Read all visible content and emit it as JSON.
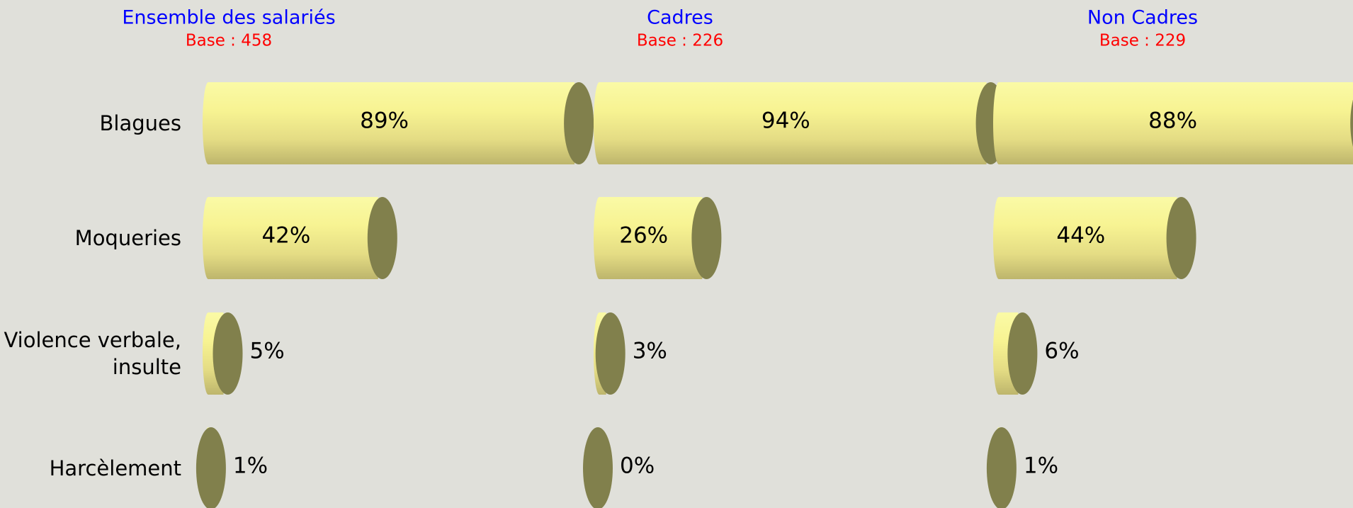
{
  "chart_data": {
    "type": "bar",
    "categories": [
      "Blagues",
      "Moqueries",
      "Violence verbale, insulte",
      "Harcèlement"
    ],
    "series": [
      {
        "name": "Ensemble des salariés",
        "subtitle": "Base : 458",
        "color": "#f2ee8c",
        "values": [
          89,
          42,
          5,
          1
        ],
        "value_labels": [
          "89%",
          "42%",
          "5%",
          "1%"
        ]
      },
      {
        "name": "Cadres",
        "subtitle": "Base : 226",
        "color": "#f2ee8c",
        "values": [
          94,
          26,
          3,
          0
        ],
        "value_labels": [
          "94%",
          "26%",
          "3%",
          "0%"
        ]
      },
      {
        "name": "Non Cadres",
        "subtitle": "Base : 229",
        "color": "#f2ee8c",
        "values": [
          88,
          44,
          6,
          1
        ],
        "value_labels": [
          "88%",
          "44%",
          "6%",
          "1%"
        ]
      }
    ]
  }
}
